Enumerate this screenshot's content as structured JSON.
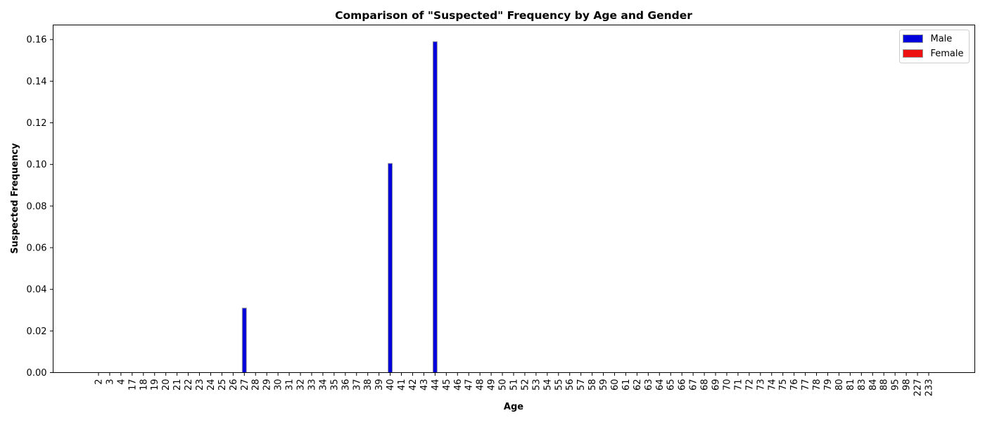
{
  "chart_data": {
    "type": "bar",
    "title": "Comparison of \"Suspected\" Frequency by Age and Gender",
    "xlabel": "Age",
    "ylabel": "Suspected Frequency",
    "ylim": [
      0,
      0.167
    ],
    "yticks": [
      0.0,
      0.02,
      0.04,
      0.06,
      0.08,
      0.1,
      0.12,
      0.14,
      0.16
    ],
    "ytick_labels": [
      "0.00",
      "0.02",
      "0.04",
      "0.06",
      "0.08",
      "0.10",
      "0.12",
      "0.14",
      "0.16"
    ],
    "grid": false,
    "legend_position": "top-right",
    "categories": [
      "2",
      "3",
      "4",
      "17",
      "18",
      "19",
      "20",
      "21",
      "22",
      "23",
      "24",
      "25",
      "26",
      "27",
      "28",
      "29",
      "30",
      "31",
      "32",
      "33",
      "34",
      "35",
      "36",
      "37",
      "38",
      "39",
      "40",
      "41",
      "42",
      "43",
      "44",
      "45",
      "46",
      "47",
      "48",
      "49",
      "50",
      "51",
      "52",
      "53",
      "54",
      "55",
      "56",
      "57",
      "58",
      "59",
      "60",
      "61",
      "62",
      "63",
      "64",
      "65",
      "66",
      "67",
      "68",
      "69",
      "70",
      "71",
      "72",
      "73",
      "74",
      "75",
      "76",
      "77",
      "78",
      "79",
      "80",
      "81",
      "83",
      "84",
      "88",
      "95",
      "98",
      "227",
      "233"
    ],
    "series": [
      {
        "name": "Male",
        "color": "#0000dd",
        "values": [
          0,
          0,
          0,
          0,
          0,
          0,
          0,
          0,
          0,
          0,
          0,
          0,
          0,
          0.031,
          0,
          0,
          0,
          0,
          0,
          0,
          0,
          0,
          0,
          0,
          0,
          0,
          0.1005,
          0,
          0,
          0,
          0.159,
          0,
          0,
          0,
          0,
          0,
          0,
          0,
          0,
          0,
          0,
          0,
          0,
          0,
          0,
          0,
          0,
          0,
          0,
          0,
          0,
          0,
          0,
          0,
          0,
          0,
          0,
          0,
          0,
          0,
          0,
          0,
          0,
          0,
          0,
          0,
          0,
          0,
          0,
          0,
          0,
          0,
          0,
          0,
          0
        ]
      },
      {
        "name": "Female",
        "color": "#ee1111",
        "values": [
          0,
          0,
          0,
          0,
          0,
          0,
          0,
          0,
          0,
          0,
          0,
          0,
          0,
          0,
          0,
          0,
          0,
          0,
          0,
          0,
          0,
          0,
          0,
          0,
          0,
          0,
          0,
          0,
          0,
          0,
          0,
          0,
          0,
          0,
          0,
          0,
          0,
          0,
          0,
          0,
          0,
          0,
          0,
          0,
          0,
          0,
          0,
          0,
          0,
          0,
          0,
          0,
          0,
          0,
          0,
          0,
          0,
          0,
          0,
          0,
          0,
          0,
          0,
          0,
          0,
          0,
          0,
          0,
          0,
          0,
          0,
          0,
          0,
          0,
          0
        ]
      }
    ]
  }
}
